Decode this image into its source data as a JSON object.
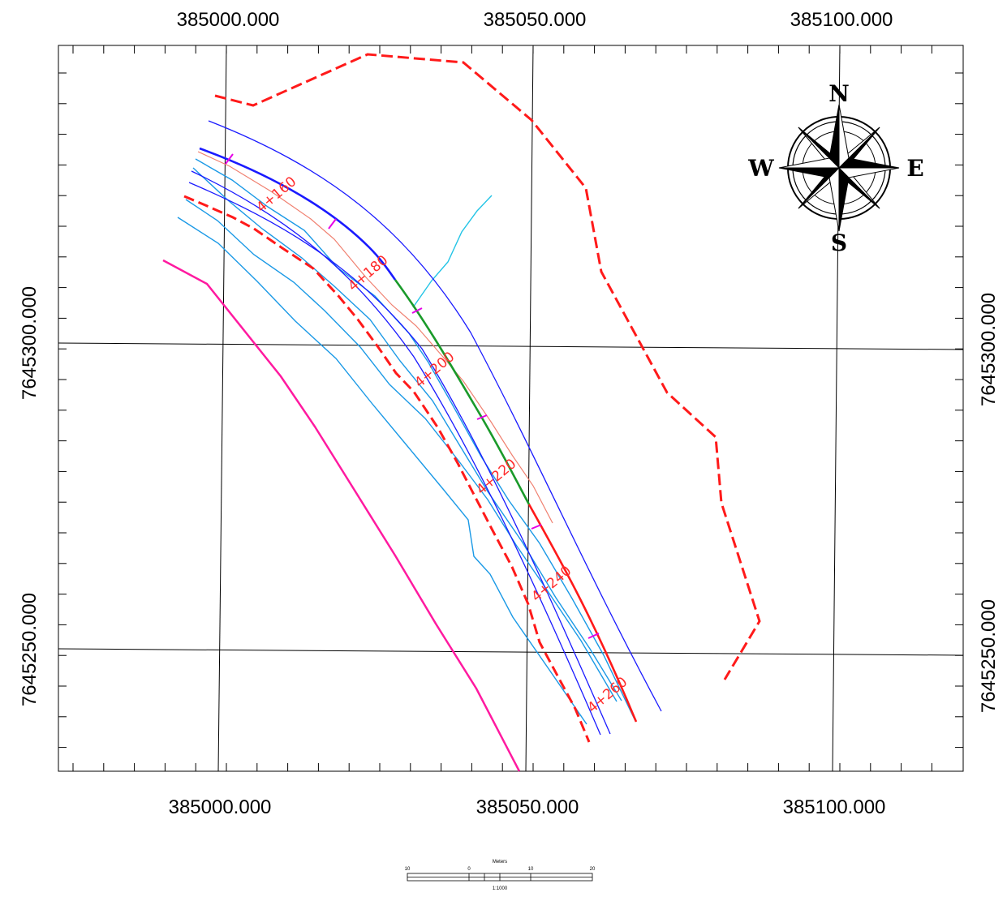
{
  "map": {
    "coords": {
      "x_top": [
        "385000.000",
        "385050.000",
        "385100.000"
      ],
      "x_bottom": [
        "385000.000",
        "385050.000",
        "385100.000"
      ],
      "y_left": [
        "7645300.000",
        "7645250.000"
      ],
      "y_right": [
        "7645300.000",
        "7645250.000"
      ]
    },
    "stations": [
      "4+160",
      "4+180",
      "4+200",
      "4+220",
      "4+240",
      "4+260"
    ],
    "compass": {
      "north": "N",
      "south": "S",
      "east": "E",
      "west": "W"
    },
    "scale_bar": {
      "units": "Meters",
      "ticks": [
        "10",
        "0",
        "10",
        "20"
      ],
      "ratio": "1:1000"
    },
    "colors": {
      "boundary": "#ff1a1a",
      "road_edge": "#1a1aff",
      "contour": "#1a99e6",
      "centerline_green": "#1a9a2a",
      "centerline_red": "#ff1a1a",
      "shoreline": "#ff1aa0",
      "station_mark": "#e600e6",
      "stream": "#22c4e6"
    }
  }
}
